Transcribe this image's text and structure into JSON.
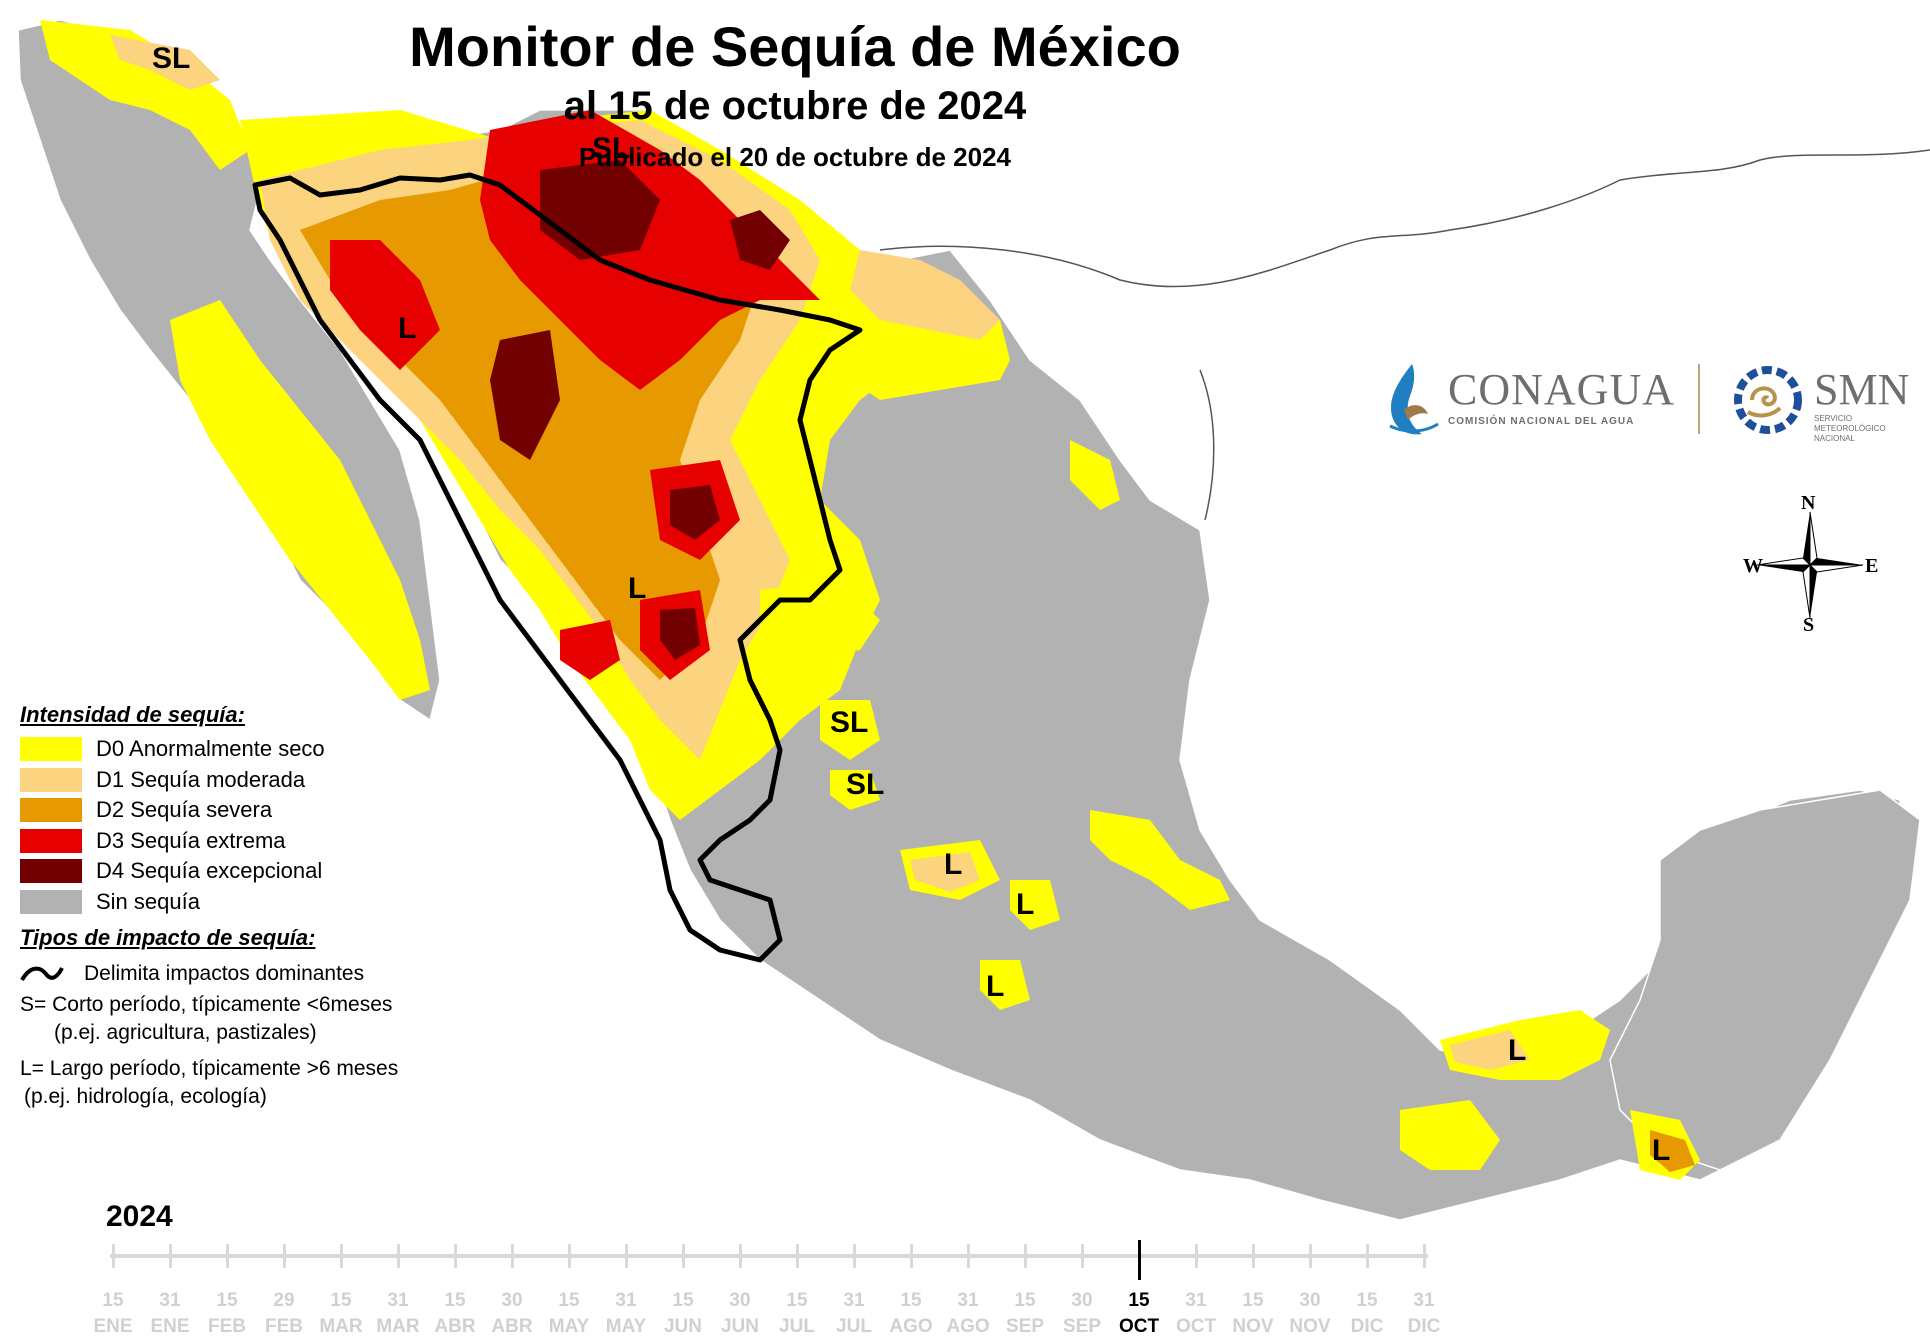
{
  "title": "Monitor de Sequía de México",
  "subtitle": "al 15 de octubre de 2024",
  "published": "Publicado el 20 de octubre de 2024",
  "colors": {
    "D0": "#ffff00",
    "D1": "#fcd37f",
    "D2": "#e69900",
    "D3": "#e60000",
    "D4": "#730000",
    "none": "#b2b2b2",
    "boundary": "#000000"
  },
  "legend": {
    "intensity_title": "Intensidad de sequía:",
    "items": [
      {
        "code": "D0",
        "label": "D0 Anormalmente seco"
      },
      {
        "code": "D1",
        "label": "D1 Sequía moderada"
      },
      {
        "code": "D2",
        "label": "D2 Sequía severa"
      },
      {
        "code": "D3",
        "label": "D3 Sequía extrema"
      },
      {
        "code": "D4",
        "label": "D4 Sequía excepcional"
      },
      {
        "code": "none",
        "label": "Sin sequía"
      }
    ],
    "impact_title": "Tipos de impacto de sequía:",
    "impact_line": "Delimita impactos dominantes",
    "short_term": "S= Corto período, típicamente <6meses",
    "short_term_example": "(p.ej. agricultura, pastizales)",
    "long_term": "L= Largo período, típicamente >6 meses",
    "long_term_example": "(p.ej. hidrología, ecología)"
  },
  "map_labels": [
    "SL",
    "SL",
    "L",
    "L",
    "SL",
    "SL",
    "L",
    "L",
    "L",
    "L",
    "L"
  ],
  "logos": {
    "conagua": "CONAGUA",
    "conagua_sub": "COMISIÓN NACIONAL DEL AGUA",
    "smn": "SMN",
    "smn_sub": "SERVICIO METEOROLÓGICO NACIONAL"
  },
  "compass": {
    "n": "N",
    "s": "S",
    "e": "E",
    "w": "W"
  },
  "timeline": {
    "year": "2024",
    "ticks": [
      {
        "day": "15",
        "month": "ENE"
      },
      {
        "day": "31",
        "month": "ENE"
      },
      {
        "day": "15",
        "month": "FEB"
      },
      {
        "day": "29",
        "month": "FEB"
      },
      {
        "day": "15",
        "month": "MAR"
      },
      {
        "day": "31",
        "month": "MAR"
      },
      {
        "day": "15",
        "month": "ABR"
      },
      {
        "day": "30",
        "month": "ABR"
      },
      {
        "day": "15",
        "month": "MAY"
      },
      {
        "day": "31",
        "month": "MAY"
      },
      {
        "day": "15",
        "month": "JUN"
      },
      {
        "day": "30",
        "month": "JUN"
      },
      {
        "day": "15",
        "month": "JUL"
      },
      {
        "day": "31",
        "month": "JUL"
      },
      {
        "day": "15",
        "month": "AGO"
      },
      {
        "day": "31",
        "month": "AGO"
      },
      {
        "day": "15",
        "month": "SEP"
      },
      {
        "day": "30",
        "month": "SEP"
      },
      {
        "day": "15",
        "month": "OCT"
      },
      {
        "day": "31",
        "month": "OCT"
      },
      {
        "day": "15",
        "month": "NOV"
      },
      {
        "day": "30",
        "month": "NOV"
      },
      {
        "day": "15",
        "month": "DIC"
      },
      {
        "day": "31",
        "month": "DIC"
      }
    ],
    "active_index": 18
  }
}
